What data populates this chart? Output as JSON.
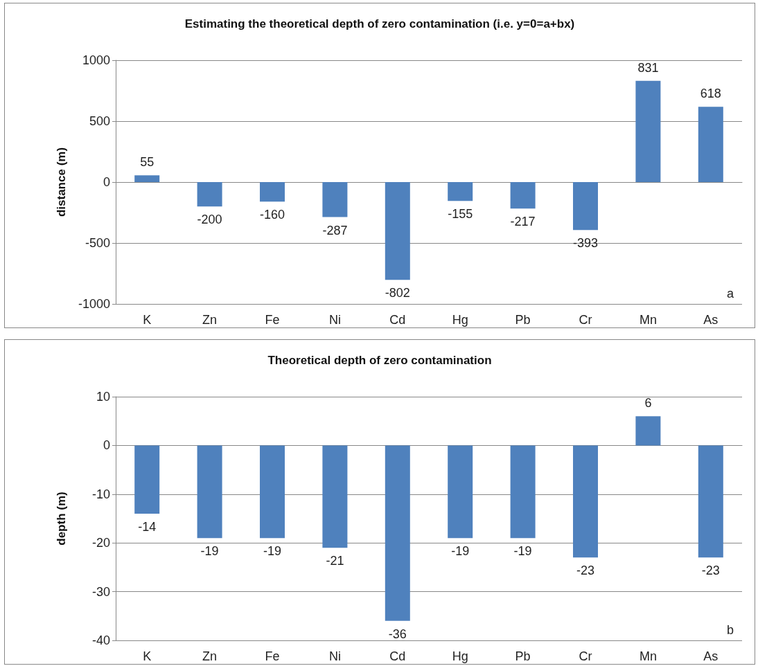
{
  "chart_data": [
    {
      "type": "bar",
      "title": "Estimating the theoretical depth of zero contamination (i.e. y=0=a+bx)",
      "ylabel": "distance (m)",
      "categories": [
        "K",
        "Zn",
        "Fe",
        "Ni",
        "Cd",
        "Hg",
        "Pb",
        "Cr",
        "Mn",
        "As"
      ],
      "values": [
        55,
        -200,
        -160,
        -287,
        -802,
        -155,
        -217,
        -393,
        831,
        618
      ],
      "color": "#4f81bd",
      "ylim": [
        -1000,
        1000
      ],
      "yticks": [
        -1000,
        -500,
        0,
        500,
        1000
      ],
      "grid": "y",
      "data_labels": true,
      "annotations": [
        "a"
      ]
    },
    {
      "type": "bar",
      "title": "Theoretical depth of zero contamination",
      "ylabel": "depth (m)",
      "categories": [
        "K",
        "Zn",
        "Fe",
        "Ni",
        "Cd",
        "Hg",
        "Pb",
        "Cr",
        "Mn",
        "As"
      ],
      "values": [
        -14,
        -19,
        -19,
        -21,
        -36,
        -19,
        -19,
        -23,
        6,
        -23
      ],
      "color": "#4f81bd",
      "ylim": [
        -40,
        10
      ],
      "yticks": [
        -40,
        -30,
        -20,
        -10,
        0,
        10
      ],
      "grid": "y",
      "data_labels": true,
      "annotations": [
        "b"
      ]
    }
  ]
}
